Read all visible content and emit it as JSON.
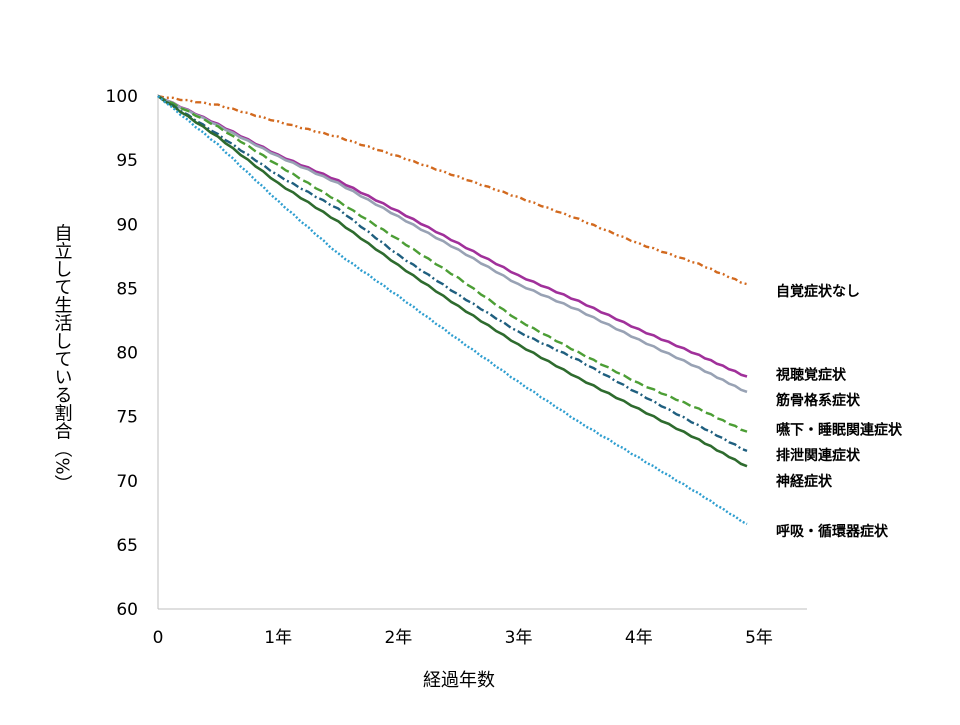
{
  "chart_data": {
    "type": "line",
    "title": "",
    "xlabel": "経過年数",
    "ylabel": "自立して生活している割合（%）",
    "xlim": [
      0,
      5.4
    ],
    "ylim": [
      60,
      100
    ],
    "x_ticks": [
      {
        "value": 0,
        "label": "0"
      },
      {
        "value": 1,
        "label": "1年"
      },
      {
        "value": 2,
        "label": "2年"
      },
      {
        "value": 3,
        "label": "3年"
      },
      {
        "value": 4,
        "label": "4年"
      },
      {
        "value": 5,
        "label": "5年"
      }
    ],
    "y_ticks": [
      {
        "value": 60,
        "label": "60"
      },
      {
        "value": 65,
        "label": "65"
      },
      {
        "value": 70,
        "label": "70"
      },
      {
        "value": 75,
        "label": "75"
      },
      {
        "value": 80,
        "label": "80"
      },
      {
        "value": 85,
        "label": "85"
      },
      {
        "value": 90,
        "label": "90"
      },
      {
        "value": 95,
        "label": "95"
      },
      {
        "value": 100,
        "label": "100"
      }
    ],
    "grid": false,
    "legend": "direct labels at right end of lines",
    "series": [
      {
        "name": "自覚症状なし",
        "color": "#D2691E",
        "dash": "dash-dot-dot",
        "x": [
          0,
          0.5,
          1,
          1.5,
          2,
          2.5,
          3,
          3.5,
          4,
          4.5,
          4.9
        ],
        "values": [
          100,
          99.3,
          98,
          96.8,
          95.3,
          93.7,
          92.1,
          90.4,
          88.5,
          86.9,
          85.3
        ]
      },
      {
        "name": "視聴覚症状",
        "color": "#A0309A",
        "dash": "solid",
        "x": [
          0,
          0.5,
          1,
          1.5,
          2,
          2.5,
          3,
          3.5,
          4,
          4.5,
          4.9
        ],
        "values": [
          100,
          97.8,
          95.4,
          93.4,
          91.0,
          88.5,
          86.0,
          84.0,
          81.8,
          79.8,
          78.1
        ]
      },
      {
        "name": "筋骨格系症状",
        "color": "#98A2B4",
        "dash": "solid",
        "x": [
          0,
          0.5,
          1,
          1.5,
          2,
          2.5,
          3,
          3.5,
          4,
          4.5,
          4.9
        ],
        "values": [
          100,
          97.7,
          95.3,
          93.2,
          90.6,
          88.0,
          85.3,
          83.3,
          81.0,
          78.8,
          76.9
        ]
      },
      {
        "name": "嚥下・睡眠関連症状",
        "color": "#4C9E35",
        "dash": "dash",
        "x": [
          0,
          0.5,
          1,
          1.5,
          2,
          2.5,
          3,
          3.5,
          4,
          4.5,
          4.9
        ],
        "values": [
          100,
          97.6,
          94.6,
          91.8,
          88.8,
          85.8,
          82.5,
          80.0,
          77.6,
          75.6,
          73.8
        ]
      },
      {
        "name": "排泄関連症状",
        "color": "#1F5F7F",
        "dash": "dash-dot",
        "x": [
          0,
          0.5,
          1,
          1.5,
          2,
          2.5,
          3,
          3.5,
          4,
          4.5,
          4.9
        ],
        "values": [
          100,
          97.0,
          93.8,
          91.2,
          87.6,
          84.5,
          81.6,
          79.4,
          76.8,
          74.3,
          72.3
        ]
      },
      {
        "name": "神経症状",
        "color": "#2E6B2E",
        "dash": "solid",
        "x": [
          0,
          0.5,
          1,
          1.5,
          2,
          2.5,
          3,
          3.5,
          4,
          4.5,
          4.9
        ],
        "values": [
          100,
          96.8,
          93.2,
          90.2,
          86.8,
          83.6,
          80.6,
          78.0,
          75.6,
          73.2,
          71.1
        ]
      },
      {
        "name": "呼吸・循環器症状",
        "color": "#2E9ED0",
        "dash": "dotted",
        "x": [
          0,
          0.5,
          1,
          1.5,
          2,
          2.5,
          3,
          3.5,
          4,
          4.5,
          4.9
        ],
        "values": [
          100,
          96.2,
          91.8,
          87.7,
          84.4,
          81.0,
          77.7,
          74.6,
          71.8,
          69.0,
          66.6
        ]
      }
    ],
    "labels": [
      {
        "text": "自覚症状なし",
        "y": 84.8
      },
      {
        "text": "視聴覚症状",
        "y": 78.3
      },
      {
        "text": "筋骨格系症状",
        "y": 76.3
      },
      {
        "text": "嚥下・睡眠関連症状",
        "y": 74.0
      },
      {
        "text": "排泄関連症状",
        "y": 72.0
      },
      {
        "text": "神経症状",
        "y": 70.0
      },
      {
        "text": "呼吸・循環器症状",
        "y": 66.1
      }
    ]
  }
}
